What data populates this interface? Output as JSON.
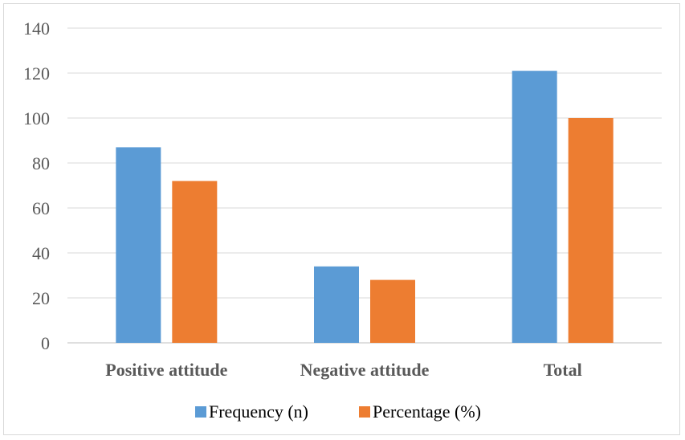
{
  "chart_data": {
    "type": "bar",
    "categories": [
      "Positive attitude",
      "Negative attitude",
      "Total"
    ],
    "series": [
      {
        "name": "Frequency (n)",
        "values": [
          87,
          34,
          121
        ],
        "color": "#5b9bd5"
      },
      {
        "name": "Percentage (%)",
        "values": [
          72,
          28,
          100
        ],
        "color": "#ed7d31"
      }
    ],
    "ylim": [
      0,
      140
    ],
    "yticks": [
      0,
      20,
      40,
      60,
      80,
      100,
      120,
      140
    ],
    "ytick_labels": [
      "0",
      "20",
      "40",
      "60",
      "80",
      "100",
      "120",
      "140"
    ],
    "grid": true,
    "legend_position": "bottom",
    "title": "",
    "xlabel": "",
    "ylabel": ""
  }
}
